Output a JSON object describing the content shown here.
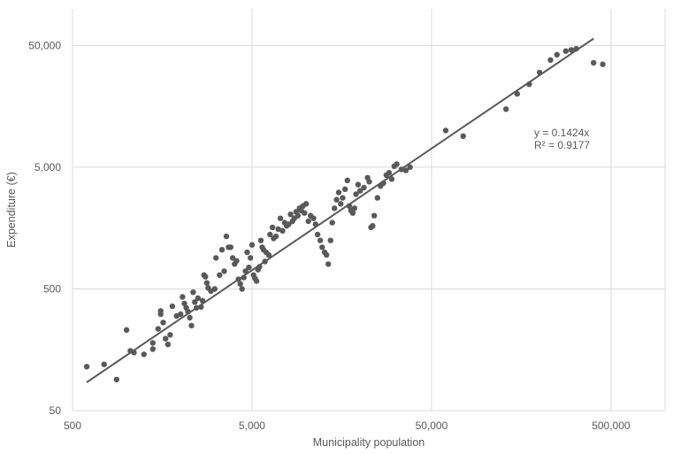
{
  "chart_data": {
    "type": "scatter",
    "title": "",
    "xlabel": "Municipality population",
    "ylabel": "Expenditure (€)",
    "x_scale": "log",
    "y_scale": "log",
    "xlim": [
      500,
      1000000
    ],
    "ylim": [
      50,
      100000
    ],
    "x_ticks": [
      500,
      5000,
      50000,
      500000
    ],
    "x_tick_labels": [
      "500",
      "5,000",
      "50,000",
      "500,000"
    ],
    "y_ticks": [
      50,
      500,
      5000,
      50000
    ],
    "y_tick_labels": [
      "50",
      "500",
      "5,000",
      "50,000"
    ],
    "grid": true,
    "legend": "none",
    "point_color": "#595959",
    "trendline": {
      "type": "linear_through_origin",
      "slope": 0.1424,
      "x_start": 600,
      "x_end": 400000,
      "color": "#595959"
    },
    "annotation": {
      "equation": "y = 0.1424x",
      "r_squared": "R² = 0.9177"
    },
    "points": [
      [
        600,
        115
      ],
      [
        750,
        120
      ],
      [
        880,
        90
      ],
      [
        1000,
        230
      ],
      [
        1050,
        155
      ],
      [
        1100,
        150
      ],
      [
        1250,
        145
      ],
      [
        1400,
        180
      ],
      [
        1400,
        160
      ],
      [
        1500,
        235
      ],
      [
        1550,
        310
      ],
      [
        1550,
        330
      ],
      [
        1600,
        265
      ],
      [
        1650,
        195
      ],
      [
        1700,
        175
      ],
      [
        1750,
        210
      ],
      [
        1800,
        360
      ],
      [
        1900,
        300
      ],
      [
        2000,
        310
      ],
      [
        2050,
        430
      ],
      [
        2100,
        380
      ],
      [
        2150,
        350
      ],
      [
        2200,
        325
      ],
      [
        2250,
        290
      ],
      [
        2300,
        250
      ],
      [
        2350,
        470
      ],
      [
        2400,
        390
      ],
      [
        2450,
        350
      ],
      [
        2500,
        420
      ],
      [
        2600,
        355
      ],
      [
        2650,
        400
      ],
      [
        2700,
        650
      ],
      [
        2750,
        630
      ],
      [
        2800,
        560
      ],
      [
        2850,
        510
      ],
      [
        2950,
        480
      ],
      [
        3100,
        500
      ],
      [
        3150,
        900
      ],
      [
        3300,
        650
      ],
      [
        3400,
        1050
      ],
      [
        3500,
        700
      ],
      [
        3600,
        1350
      ],
      [
        3700,
        1100
      ],
      [
        3800,
        1100
      ],
      [
        3900,
        900
      ],
      [
        4000,
        800
      ],
      [
        4100,
        850
      ],
      [
        4200,
        600
      ],
      [
        4300,
        550
      ],
      [
        4400,
        500
      ],
      [
        4500,
        620
      ],
      [
        4600,
        700
      ],
      [
        4700,
        1000
      ],
      [
        4800,
        750
      ],
      [
        4900,
        900
      ],
      [
        5000,
        1150
      ],
      [
        5100,
        650
      ],
      [
        5200,
        610
      ],
      [
        5300,
        580
      ],
      [
        5400,
        720
      ],
      [
        5500,
        760
      ],
      [
        5600,
        1250
      ],
      [
        5700,
        1100
      ],
      [
        5800,
        1050
      ],
      [
        5900,
        840
      ],
      [
        6000,
        1000
      ],
      [
        6200,
        950
      ],
      [
        6300,
        1400
      ],
      [
        6500,
        1600
      ],
      [
        6600,
        1300
      ],
      [
        6800,
        1350
      ],
      [
        7000,
        1550
      ],
      [
        7200,
        1900
      ],
      [
        7400,
        1500
      ],
      [
        7600,
        1750
      ],
      [
        7800,
        1650
      ],
      [
        8000,
        1700
      ],
      [
        8200,
        2050
      ],
      [
        8400,
        1800
      ],
      [
        8600,
        1900
      ],
      [
        8800,
        2150
      ],
      [
        9000,
        2000
      ],
      [
        9200,
        2300
      ],
      [
        9400,
        2200
      ],
      [
        9600,
        2400
      ],
      [
        9800,
        2100
      ],
      [
        10000,
        2500
      ],
      [
        10300,
        1800
      ],
      [
        10600,
        2000
      ],
      [
        11000,
        1900
      ],
      [
        11300,
        1700
      ],
      [
        11600,
        1400
      ],
      [
        12000,
        1250
      ],
      [
        12300,
        1100
      ],
      [
        12700,
        1000
      ],
      [
        13000,
        950
      ],
      [
        13300,
        800
      ],
      [
        13700,
        1250
      ],
      [
        14000,
        1750
      ],
      [
        14400,
        2300
      ],
      [
        14800,
        2700
      ],
      [
        15200,
        3100
      ],
      [
        15600,
        2500
      ],
      [
        16000,
        2800
      ],
      [
        16500,
        3300
      ],
      [
        17000,
        3900
      ],
      [
        17400,
        2400
      ],
      [
        17800,
        2200
      ],
      [
        18200,
        2100
      ],
      [
        18600,
        2300
      ],
      [
        19000,
        3000
      ],
      [
        19500,
        3600
      ],
      [
        20000,
        3200
      ],
      [
        21000,
        3400
      ],
      [
        22000,
        4100
      ],
      [
        22500,
        3800
      ],
      [
        23000,
        1600
      ],
      [
        23500,
        1650
      ],
      [
        24000,
        2000
      ],
      [
        25000,
        2800
      ],
      [
        26000,
        3500
      ],
      [
        27000,
        3700
      ],
      [
        28000,
        4300
      ],
      [
        29000,
        4500
      ],
      [
        30000,
        4000
      ],
      [
        31000,
        5100
      ],
      [
        32000,
        5300
      ],
      [
        34000,
        4800
      ],
      [
        36000,
        4700
      ],
      [
        38000,
        5000
      ],
      [
        60000,
        10000
      ],
      [
        75000,
        9000
      ],
      [
        130000,
        15000
      ],
      [
        150000,
        20000
      ],
      [
        175000,
        24000
      ],
      [
        200000,
        30000
      ],
      [
        230000,
        38000
      ],
      [
        250000,
        42000
      ],
      [
        280000,
        45000
      ],
      [
        300000,
        46000
      ],
      [
        320000,
        47000
      ],
      [
        450000,
        35000
      ],
      [
        400000,
        36000
      ]
    ]
  }
}
